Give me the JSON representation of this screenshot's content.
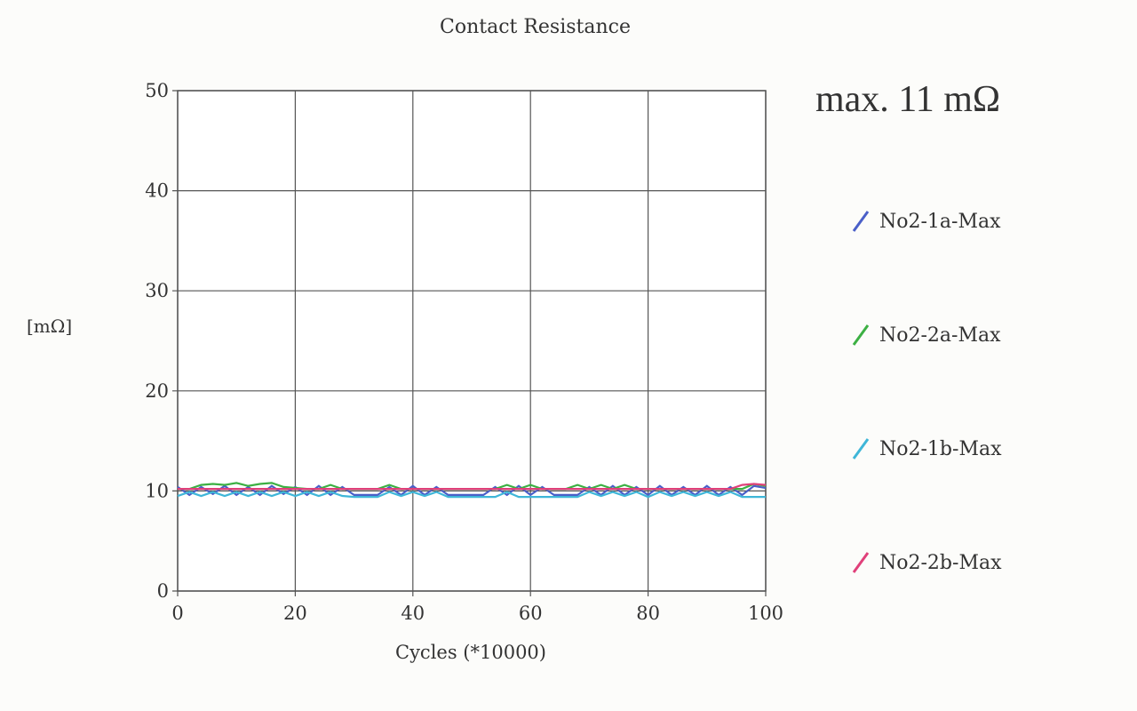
{
  "chart_data": {
    "type": "line",
    "title": "Contact Resistance",
    "xlabel": "Cycles (*10000)",
    "ylabel": "[mΩ]",
    "xlim": [
      0,
      100
    ],
    "ylim": [
      0,
      50
    ],
    "xticks": [
      0,
      20,
      40,
      60,
      80,
      100
    ],
    "yticks": [
      0,
      10,
      20,
      30,
      40,
      50
    ],
    "grid": true,
    "legend_position": "right",
    "annotation": "max. 11 mΩ",
    "x": [
      0,
      2,
      4,
      6,
      8,
      10,
      12,
      14,
      16,
      18,
      20,
      22,
      24,
      26,
      28,
      30,
      32,
      34,
      36,
      38,
      40,
      42,
      44,
      46,
      48,
      50,
      52,
      54,
      56,
      58,
      60,
      62,
      64,
      66,
      68,
      70,
      72,
      74,
      76,
      78,
      80,
      82,
      84,
      86,
      88,
      90,
      92,
      94,
      96,
      98,
      100
    ],
    "series": [
      {
        "name": "No2-1a-Max",
        "color": "#4a5fc8",
        "values": [
          10.4,
          9.6,
          10.4,
          9.7,
          10.5,
          9.6,
          10.4,
          9.6,
          10.5,
          9.7,
          10.4,
          9.6,
          10.5,
          9.6,
          10.4,
          9.6,
          9.6,
          9.6,
          10.4,
          9.6,
          10.5,
          9.6,
          10.4,
          9.6,
          9.6,
          9.6,
          9.6,
          10.4,
          9.6,
          10.5,
          9.6,
          10.4,
          9.6,
          9.6,
          9.6,
          10.4,
          9.6,
          10.5,
          9.6,
          10.4,
          9.6,
          10.5,
          9.6,
          10.4,
          9.6,
          10.5,
          9.6,
          10.4,
          9.6,
          10.5,
          10.3
        ]
      },
      {
        "name": "No2-2a-Max",
        "color": "#3cb043",
        "values": [
          10.2,
          10.2,
          10.6,
          10.7,
          10.6,
          10.8,
          10.5,
          10.7,
          10.8,
          10.4,
          10.3,
          10.2,
          10.2,
          10.6,
          10.2,
          10.2,
          10.2,
          10.2,
          10.6,
          10.2,
          10.2,
          10.2,
          10.2,
          10.2,
          10.2,
          10.2,
          10.2,
          10.2,
          10.6,
          10.2,
          10.6,
          10.2,
          10.2,
          10.2,
          10.6,
          10.2,
          10.6,
          10.2,
          10.6,
          10.2,
          10.2,
          10.2,
          10.2,
          10.2,
          10.2,
          10.2,
          10.2,
          10.2,
          10.2,
          10.7,
          10.5
        ]
      },
      {
        "name": "No2-1b-Max",
        "color": "#3fb6d8",
        "values": [
          9.5,
          9.9,
          9.5,
          9.9,
          9.5,
          9.9,
          9.5,
          9.9,
          9.5,
          9.9,
          9.5,
          9.9,
          9.5,
          9.9,
          9.5,
          9.4,
          9.4,
          9.4,
          9.9,
          9.5,
          9.9,
          9.5,
          9.9,
          9.4,
          9.4,
          9.4,
          9.4,
          9.4,
          9.9,
          9.4,
          9.4,
          9.4,
          9.4,
          9.4,
          9.4,
          9.9,
          9.5,
          9.9,
          9.5,
          9.9,
          9.4,
          9.9,
          9.5,
          9.9,
          9.5,
          9.9,
          9.5,
          9.9,
          9.4,
          9.4,
          9.4
        ]
      },
      {
        "name": "No2-2b-Max",
        "color": "#e0407a",
        "values": [
          10.2,
          10.2,
          10.2,
          10.2,
          10.2,
          10.2,
          10.2,
          10.2,
          10.2,
          10.2,
          10.2,
          10.2,
          10.2,
          10.2,
          10.2,
          10.2,
          10.2,
          10.2,
          10.2,
          10.2,
          10.2,
          10.2,
          10.2,
          10.2,
          10.2,
          10.2,
          10.2,
          10.2,
          10.2,
          10.2,
          10.2,
          10.2,
          10.2,
          10.2,
          10.2,
          10.2,
          10.2,
          10.2,
          10.2,
          10.2,
          10.2,
          10.2,
          10.2,
          10.2,
          10.2,
          10.2,
          10.2,
          10.2,
          10.6,
          10.7,
          10.6
        ]
      }
    ]
  }
}
